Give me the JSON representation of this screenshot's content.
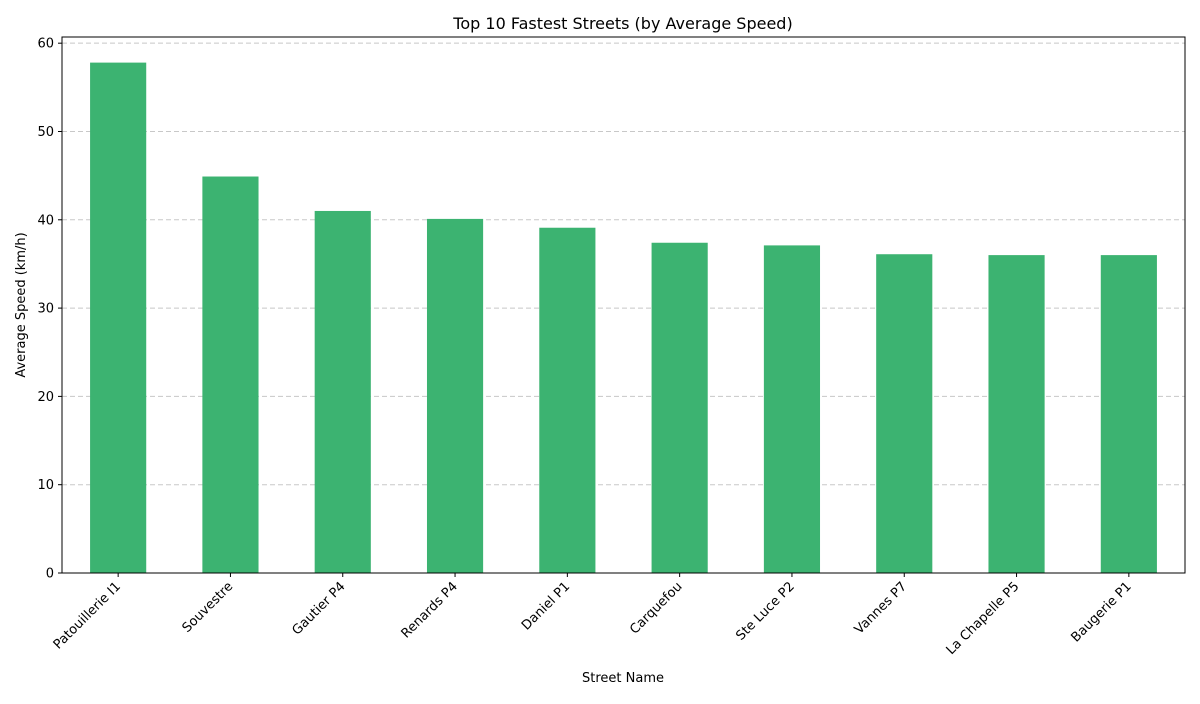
{
  "chart_data": {
    "type": "bar",
    "title": "Top 10 Fastest Streets (by Average Speed)",
    "xlabel": "Street Name",
    "ylabel": "Average Speed (km/h)",
    "categories": [
      "Patouillerie I1",
      "Souvestre",
      "Gautier P4",
      "Renards P4",
      "Daniel P1",
      "Carquefou",
      "Ste Luce P2",
      "Vannes P7",
      "La Chapelle P5",
      "Baugerie P1"
    ],
    "values": [
      57.8,
      44.9,
      41.0,
      40.1,
      39.1,
      37.4,
      37.1,
      36.1,
      36.0,
      36.0
    ],
    "ylim": [
      0,
      60.7
    ],
    "yticks": [
      0,
      10,
      20,
      30,
      40,
      50,
      60
    ],
    "grid": "y-dashed",
    "bar_color": "#3cb371",
    "grid_color": "#c8c8c8"
  }
}
